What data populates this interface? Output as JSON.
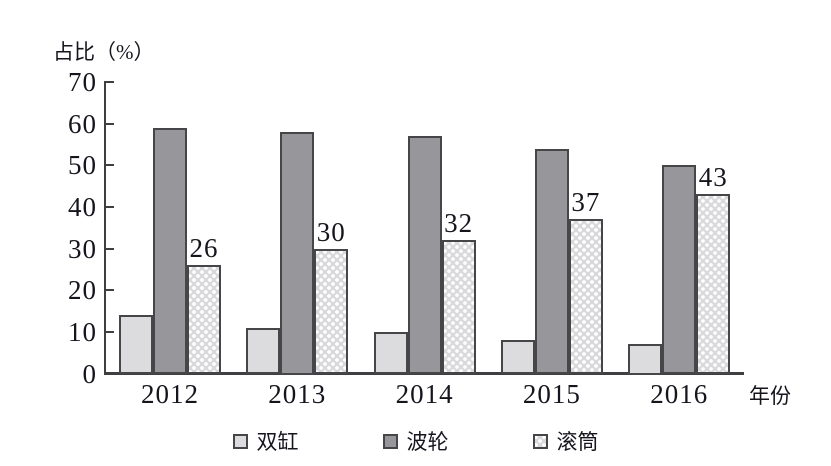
{
  "chart_data": {
    "type": "bar",
    "title": "",
    "ylabel": "占比（%）",
    "xlabel": "年份",
    "categories": [
      "2012",
      "2013",
      "2014",
      "2015",
      "2016"
    ],
    "series": [
      {
        "name": "双缸",
        "pattern": "solid",
        "fill": "#dcdcde",
        "values": [
          14,
          11,
          10,
          8,
          7
        ]
      },
      {
        "name": "波轮",
        "pattern": "solid",
        "fill": "#97979b",
        "values": [
          59,
          58,
          57,
          54,
          50
        ]
      },
      {
        "name": "滚筒",
        "pattern": "dots",
        "fill": "#d9d9dc",
        "values": [
          26,
          30,
          32,
          37,
          43
        ],
        "show_value_labels": true
      }
    ],
    "ylim": [
      0,
      70
    ],
    "yticks": [
      0,
      10,
      20,
      30,
      40,
      50,
      60,
      70
    ],
    "grid": false,
    "legend_position": "bottom",
    "bar_border_color": "#464649",
    "axis_color": "#3f3f42",
    "text_color": "#15151d"
  }
}
